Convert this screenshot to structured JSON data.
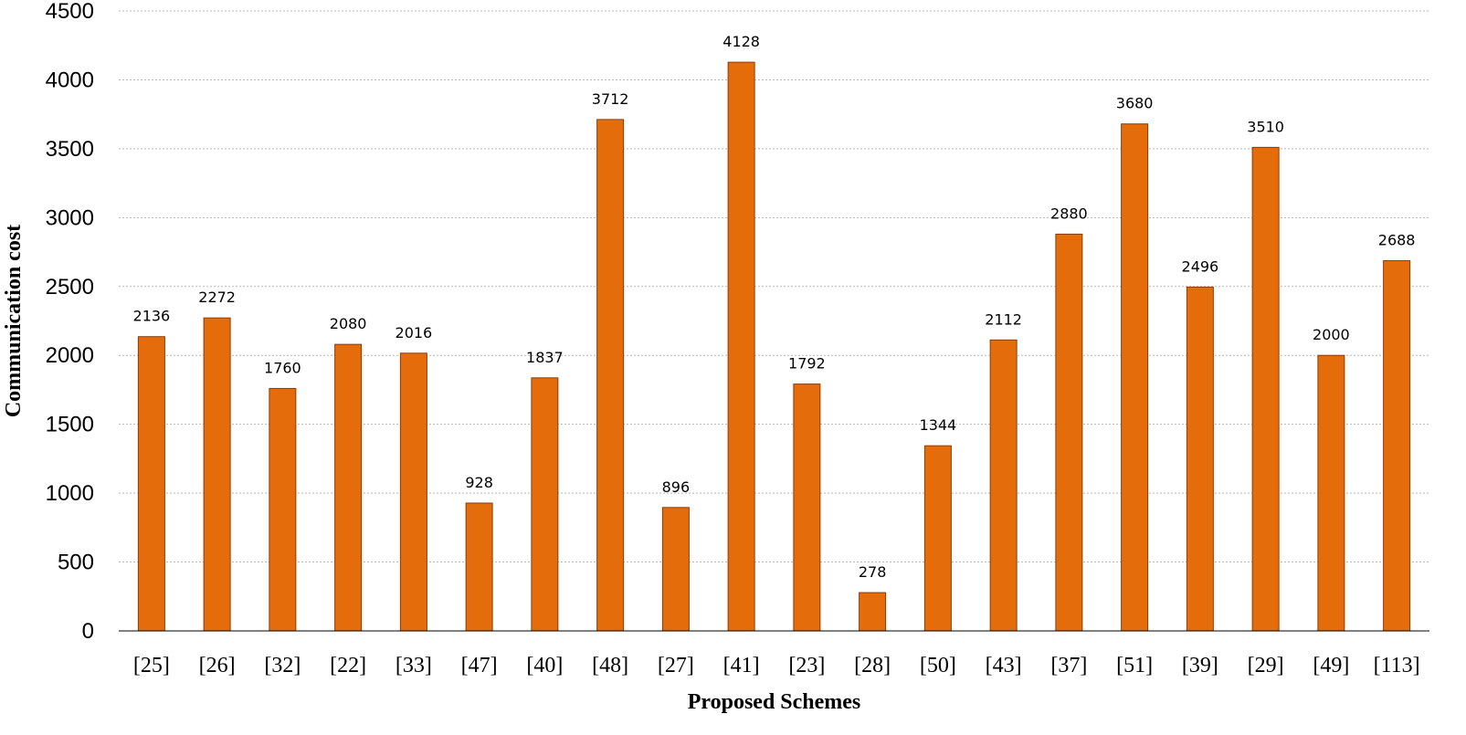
{
  "chart_data": {
    "type": "bar",
    "title": "",
    "xlabel": "Proposed Schemes",
    "ylabel": "Communication cost",
    "ylim": [
      0,
      4500
    ],
    "yticks": [
      0,
      500,
      1000,
      1500,
      2000,
      2500,
      3000,
      3500,
      4000,
      4500
    ],
    "grid": true,
    "bar_color": "#E46C0A",
    "categories": [
      "[25]",
      "[26]",
      "[32]",
      "[22]",
      "[33]",
      "[47]",
      "[40]",
      "[48]",
      "[27]",
      "[41]",
      "[23]",
      "[28]",
      "[50]",
      "[43]",
      "[37]",
      "[51]",
      "[39]",
      "[29]",
      "[49]",
      "[113]"
    ],
    "values": [
      2136,
      2272,
      1760,
      2080,
      2016,
      928,
      1837,
      3712,
      896,
      4128,
      1792,
      278,
      1344,
      2112,
      2880,
      3680,
      2496,
      3510,
      2000,
      2688
    ]
  }
}
